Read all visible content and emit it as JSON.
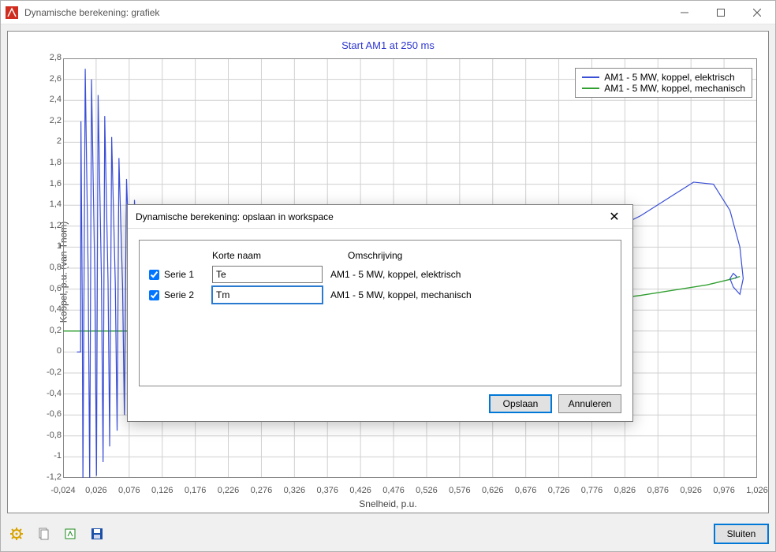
{
  "window_title": "Dynamische berekening: grafiek",
  "chart": {
    "title": "Start AM1 at 250 ms",
    "title_color": "#2e37d0",
    "xaxis_label": "Snelheid, p.u.",
    "yaxis_label": "Koppel, p.u. (van Tnom)",
    "plot_bg": "#ffffff",
    "grid_color": "#d0d0d0",
    "axis_color": "#888888",
    "x": {
      "min": -0.024,
      "max": 1.026,
      "ticks": [
        -0.024,
        0.026,
        0.076,
        0.126,
        0.176,
        0.226,
        0.276,
        0.326,
        0.376,
        0.426,
        0.476,
        0.526,
        0.576,
        0.626,
        0.676,
        0.726,
        0.776,
        0.826,
        0.876,
        0.926,
        0.976,
        1.026
      ],
      "tick_labels": [
        "-0,024",
        "0,026",
        "0,076",
        "0,126",
        "0,176",
        "0,226",
        "0,276",
        "0,326",
        "0,376",
        "0,426",
        "0,476",
        "0,526",
        "0,576",
        "0,626",
        "0,676",
        "0,726",
        "0,776",
        "0,826",
        "0,876",
        "0,926",
        "0,976",
        "1,026"
      ]
    },
    "y": {
      "min": -1.2,
      "max": 2.8,
      "ticks": [
        -1.2,
        -1.0,
        -0.8,
        -0.6,
        -0.4,
        -0.2,
        0,
        0.2,
        0.4,
        0.6,
        0.8,
        1.0,
        1.2,
        1.4,
        1.6,
        1.8,
        2.0,
        2.2,
        2.4,
        2.6,
        2.8
      ],
      "tick_labels": [
        "-1,2",
        "-1",
        "-0,8",
        "-0,6",
        "-0,4",
        "-0,2",
        "0",
        "0,2",
        "0,4",
        "0,6",
        "0,8",
        "1",
        "1,2",
        "1,4",
        "1,6",
        "1,8",
        "2",
        "2,2",
        "2,4",
        "2,6",
        "2,8"
      ]
    },
    "legend": [
      {
        "label": "AM1 - 5 MW, koppel, elektrisch",
        "color": "#3a4fd6"
      },
      {
        "label": "AM1 - 5 MW, koppel, mechanisch",
        "color": "#31a031"
      }
    ],
    "series": {
      "mechanical": {
        "color": "#31a031",
        "points": [
          [
            -0.024,
            0.2
          ],
          [
            0.03,
            0.2
          ],
          [
            0.1,
            0.2
          ],
          [
            0.3,
            0.25
          ],
          [
            0.5,
            0.32
          ],
          [
            0.7,
            0.42
          ],
          [
            0.85,
            0.54
          ],
          [
            0.95,
            0.64
          ],
          [
            0.99,
            0.7
          ],
          [
            1.0,
            0.72
          ]
        ]
      },
      "electrical": {
        "color": "#3a4fd6",
        "oscillations": [
          {
            "x": 0.001,
            "top": 0.0,
            "bot": 0.0
          },
          {
            "x": 0.005,
            "top": 2.2,
            "bot": -1.26
          },
          {
            "x": 0.014,
            "top": 2.7,
            "bot": -1.26
          },
          {
            "x": 0.024,
            "top": 2.6,
            "bot": -1.18
          },
          {
            "x": 0.034,
            "top": 2.45,
            "bot": -1.05
          },
          {
            "x": 0.044,
            "top": 2.25,
            "bot": -0.9
          },
          {
            "x": 0.055,
            "top": 2.05,
            "bot": -0.75
          },
          {
            "x": 0.066,
            "top": 1.85,
            "bot": -0.6
          },
          {
            "x": 0.078,
            "top": 1.65,
            "bot": -0.45
          },
          {
            "x": 0.09,
            "top": 1.45,
            "bot": -0.3
          },
          {
            "x": 0.104,
            "top": 1.3,
            "bot": -0.15
          },
          {
            "x": 0.118,
            "top": 1.15,
            "bot": -0.02
          },
          {
            "x": 0.134,
            "top": 1.0,
            "bot": 0.1
          },
          {
            "x": 0.15,
            "top": 0.9,
            "bot": 0.2
          }
        ],
        "tail": [
          [
            0.15,
            0.55
          ],
          [
            0.2,
            0.55
          ],
          [
            0.3,
            0.56
          ],
          [
            0.4,
            0.6
          ],
          [
            0.5,
            0.66
          ],
          [
            0.6,
            0.76
          ],
          [
            0.7,
            0.9
          ],
          [
            0.78,
            1.08
          ],
          [
            0.85,
            1.3
          ],
          [
            0.9,
            1.5
          ],
          [
            0.93,
            1.62
          ],
          [
            0.96,
            1.6
          ],
          [
            0.985,
            1.35
          ],
          [
            1.0,
            1.0
          ],
          [
            1.005,
            0.7
          ],
          [
            1.0,
            0.55
          ],
          [
            0.99,
            0.62
          ],
          [
            0.985,
            0.7
          ],
          [
            0.99,
            0.75
          ],
          [
            0.995,
            0.72
          ],
          [
            0.993,
            0.7
          ]
        ]
      }
    }
  },
  "modal": {
    "title": "Dynamische berekening: opslaan in workspace",
    "col_name": "Korte naam",
    "col_desc": "Omschrijving",
    "rows": [
      {
        "checked": true,
        "label": "Serie 1",
        "short": "Te",
        "desc": "AM1 - 5 MW, koppel, elektrisch"
      },
      {
        "checked": true,
        "label": "Serie 2",
        "short": "Tm",
        "desc": "AM1 - 5 MW, koppel, mechanisch"
      }
    ],
    "save_label": "Opslaan",
    "cancel_label": "Annuleren"
  },
  "footer": {
    "close_label": "Sluiten"
  }
}
